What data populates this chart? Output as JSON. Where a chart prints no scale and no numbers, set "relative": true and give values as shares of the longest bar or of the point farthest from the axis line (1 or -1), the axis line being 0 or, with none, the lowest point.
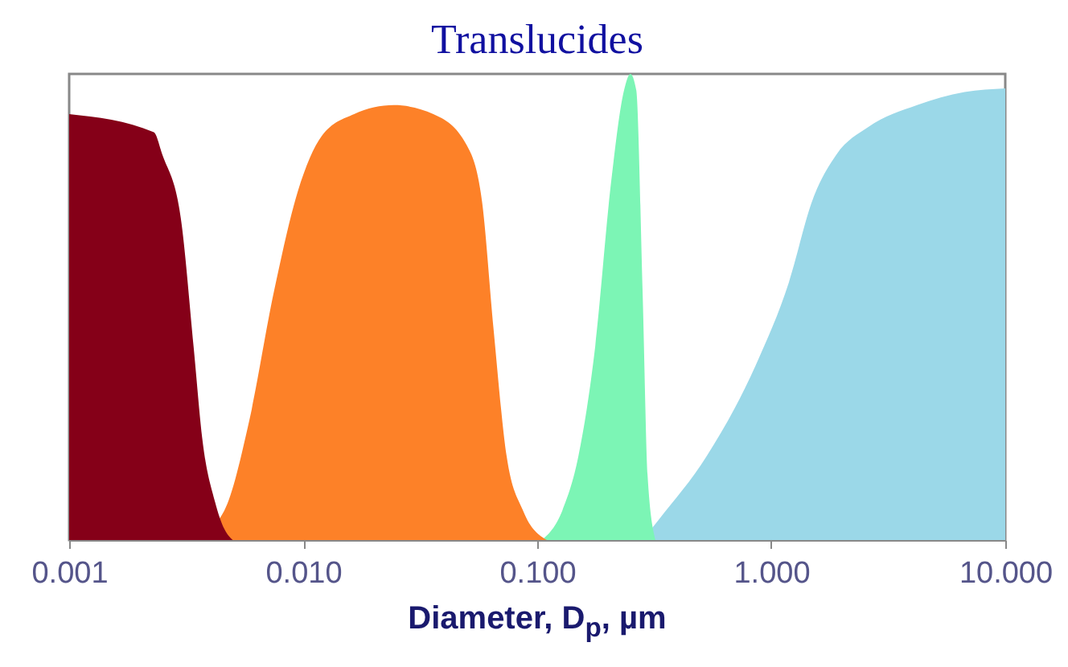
{
  "chart_data": {
    "type": "area",
    "title": "Translucides",
    "xlabel": "Diameter, D$_{p}$, µm",
    "relative": true,
    "log": "x",
    "xlim": [
      0.001,
      10
    ],
    "xticks": [
      0.001,
      {
        "value": 0.01,
        "label": "0.010"
      },
      {
        "value": 0.1,
        "label": "0.100"
      },
      {
        "value": 1,
        "label": "1.000"
      },
      {
        "value": 10,
        "label": "10.000"
      }
    ],
    "series": [
      {
        "color": "#850018",
        "x": [
          0.001,
          0.0023,
          0.0025,
          0.003,
          0.0034,
          0.0037,
          0.0042,
          0.0046,
          0.005
        ],
        "values": [
          0.914,
          0.875,
          0.827,
          0.69,
          0.416,
          0.22,
          0.082,
          0.024,
          0
        ]
      },
      {
        "color": "#fd8128",
        "x": [
          0.0034,
          0.0046,
          0.0059,
          0.0075,
          0.0095,
          0.012,
          0.0165,
          0.0244,
          0.036,
          0.05,
          0.058,
          0.065,
          0.074,
          0.087,
          0.11
        ],
        "values": [
          0,
          0.063,
          0.259,
          0.533,
          0.749,
          0.867,
          0.914,
          0.933,
          0.914,
          0.847,
          0.729,
          0.455,
          0.18,
          0.063,
          0
        ]
      },
      {
        "color": "#7cf5b5",
        "x": [
          0.105,
          0.128,
          0.15,
          0.177,
          0.207,
          0.235,
          0.25,
          0.265,
          0.282,
          0.296,
          0.32
        ],
        "values": [
          0,
          0.063,
          0.18,
          0.416,
          0.769,
          0.965,
          1,
          0.965,
          0.533,
          0.141,
          0
        ]
      },
      {
        "color": "#9bd8e8",
        "x": [
          0.282,
          0.33,
          0.53,
          0.86,
          1.19,
          1.5,
          1.9,
          2.6,
          4.2,
          6.7,
          10
        ],
        "values": [
          0,
          0.043,
          0.18,
          0.376,
          0.553,
          0.729,
          0.827,
          0.886,
          0.933,
          0.961,
          0.969
        ]
      }
    ]
  }
}
